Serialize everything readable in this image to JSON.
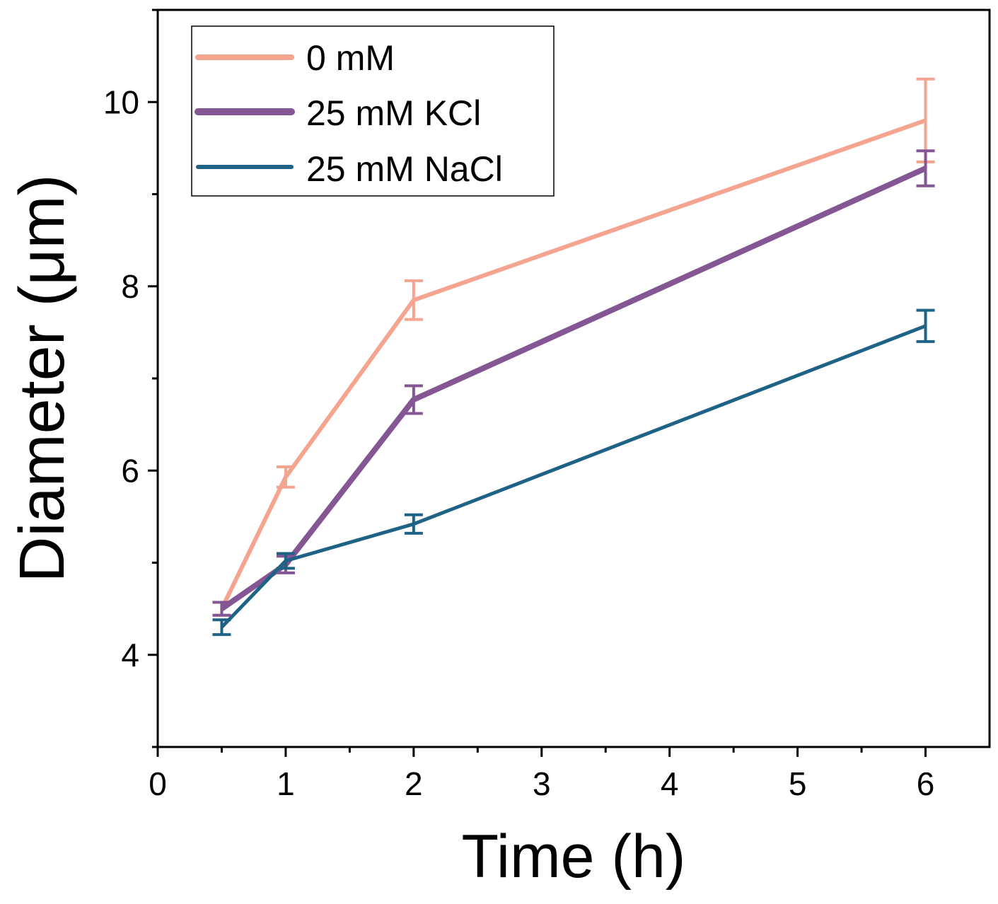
{
  "chart_data": {
    "type": "line",
    "xlabel": "Time (h)",
    "ylabel": "Diameter (μm)",
    "xlim": [
      0,
      6.5
    ],
    "ylim": [
      3,
      11
    ],
    "xticks": [
      "0",
      "1",
      "2",
      "3",
      "4",
      "5",
      "6"
    ],
    "yticks": [
      "4",
      "6",
      "8",
      "10"
    ],
    "legend_position": "top-left",
    "x": [
      0.5,
      1,
      2,
      6
    ],
    "series": [
      {
        "name": "0 mM",
        "color": "#F4A48F",
        "values": [
          4.5,
          5.93,
          7.85,
          9.8
        ],
        "errors": [
          0.07,
          0.11,
          0.21,
          0.45
        ]
      },
      {
        "name": "25 mM KCl",
        "color": "#845693",
        "values": [
          4.5,
          4.98,
          6.77,
          9.28
        ],
        "errors": [
          0.07,
          0.09,
          0.15,
          0.19
        ]
      },
      {
        "name": "25 mM NaCl",
        "color": "#1E6286",
        "values": [
          4.3,
          5.02,
          5.42,
          7.57
        ],
        "errors": [
          0.08,
          0.08,
          0.1,
          0.17
        ]
      }
    ]
  }
}
